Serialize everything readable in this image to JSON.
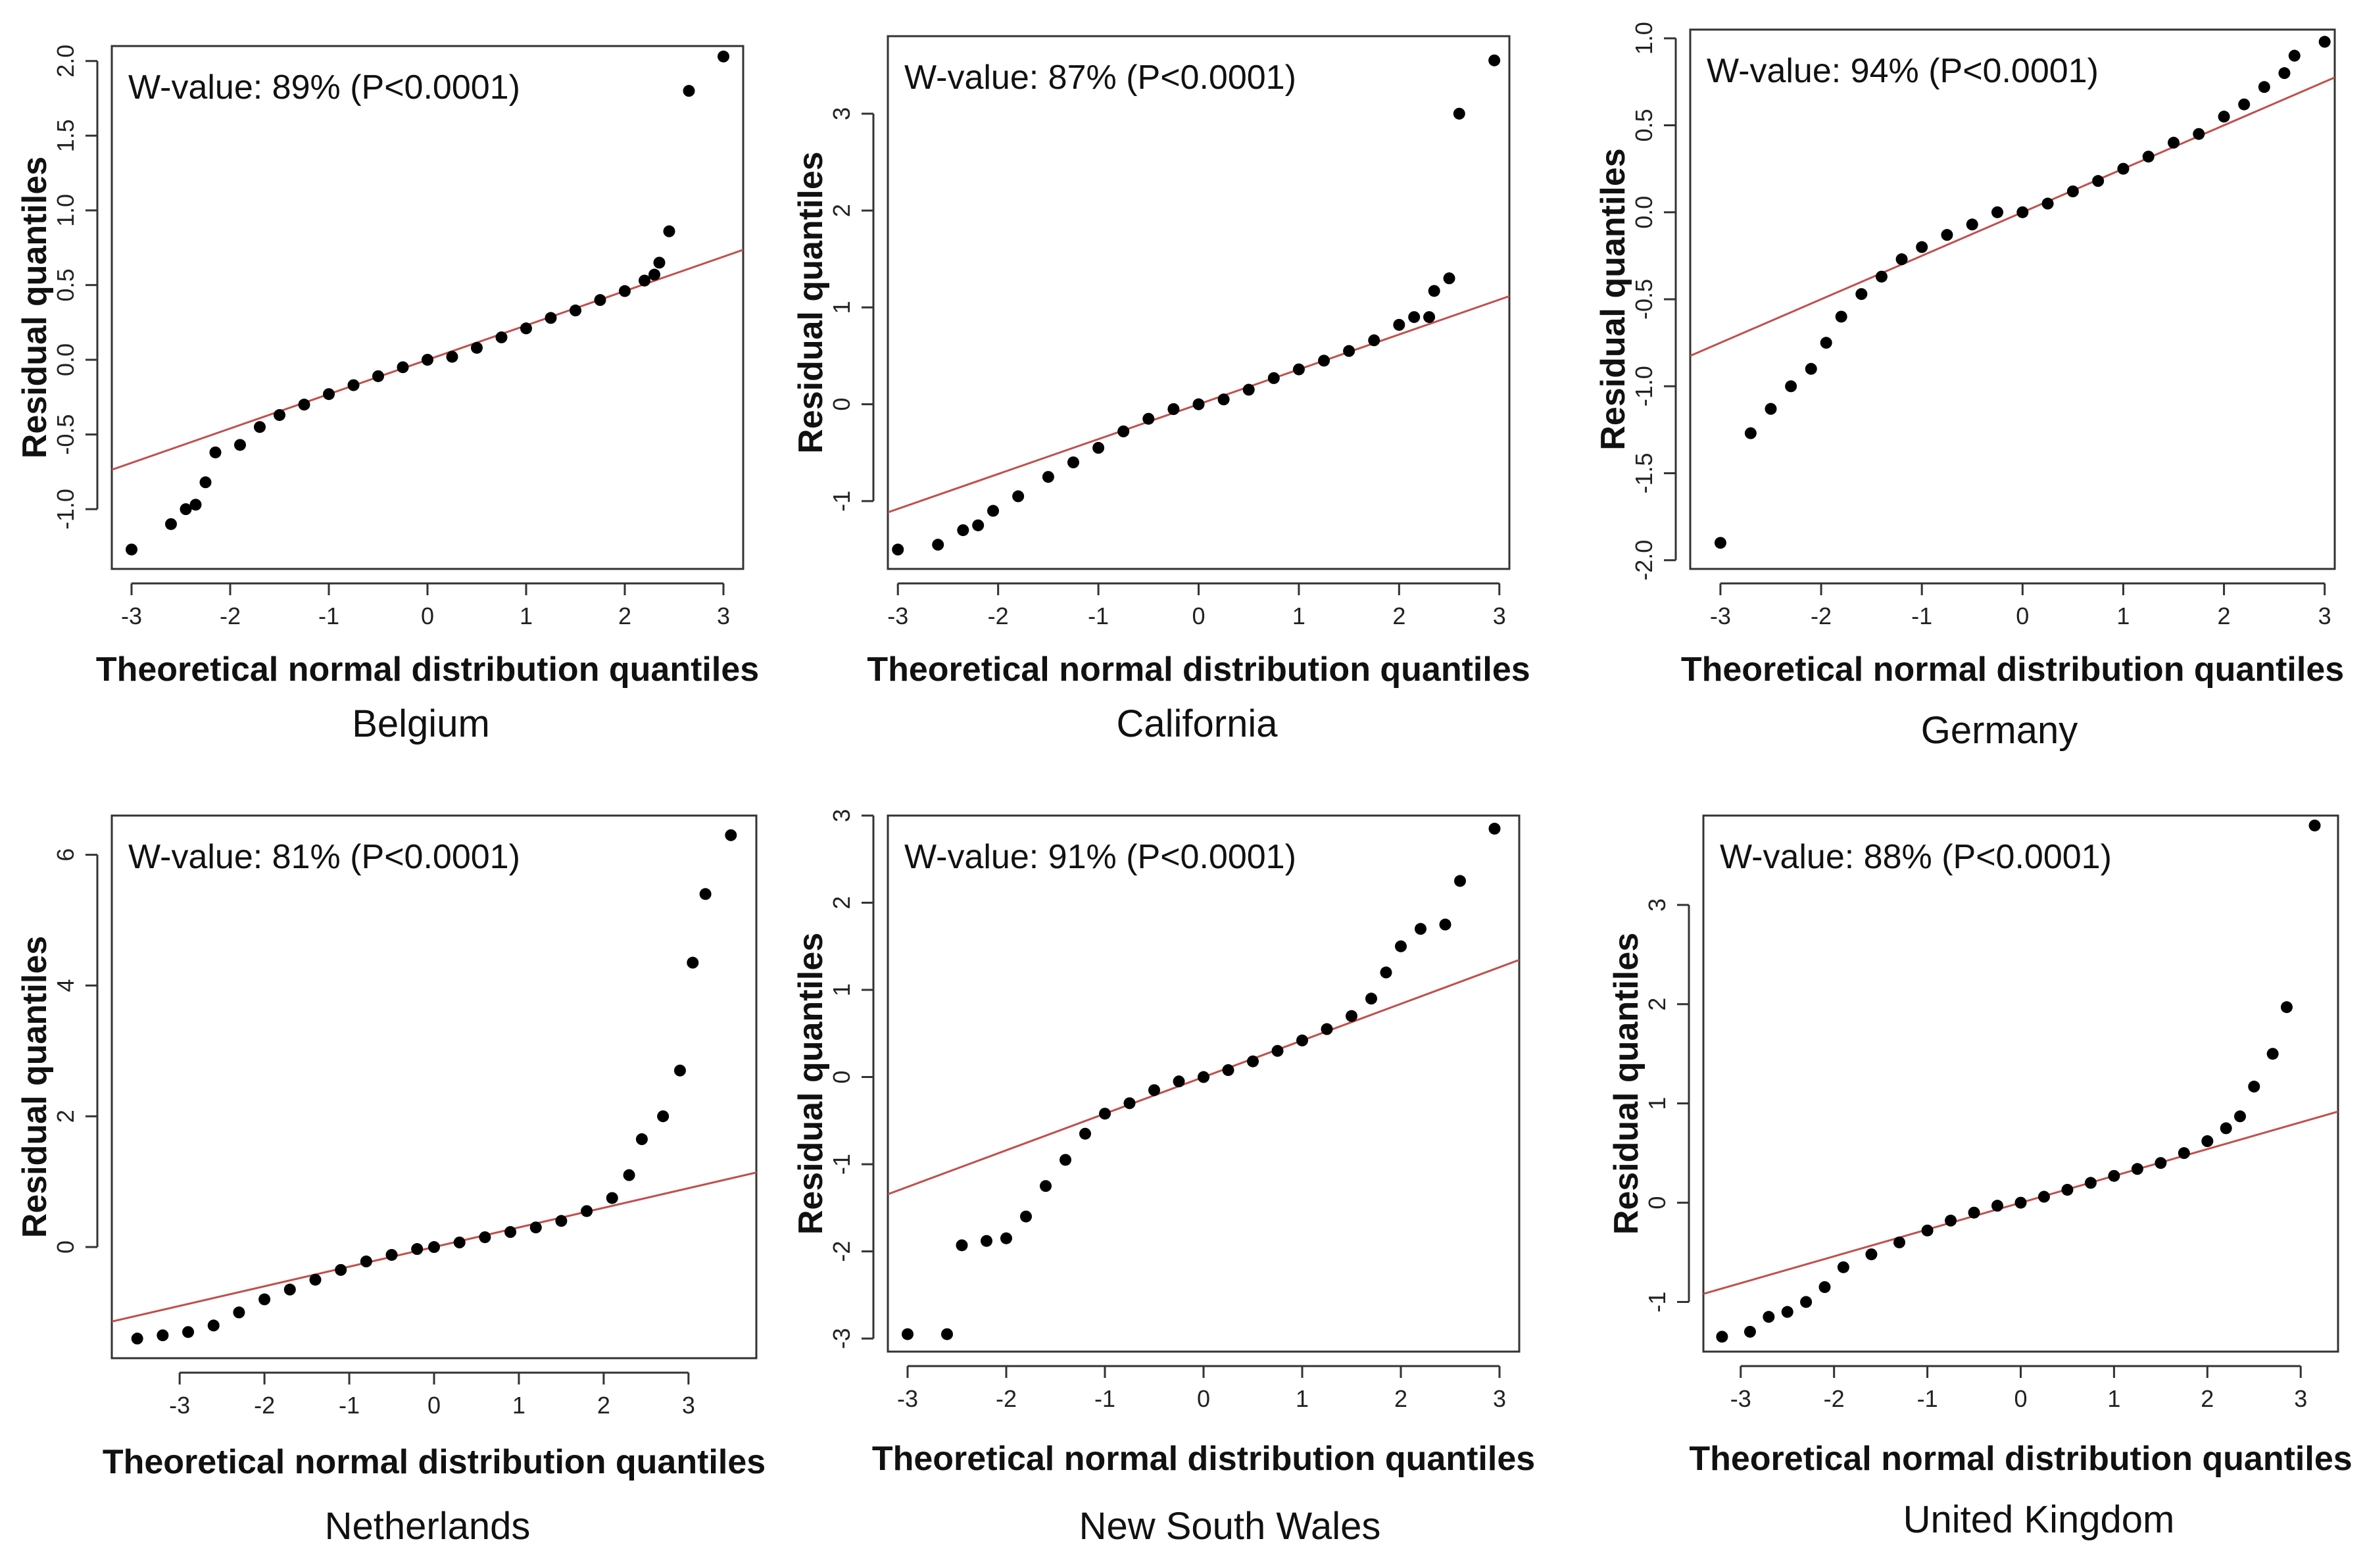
{
  "chart_data": [
    {
      "type": "scatter",
      "region": "Belgium",
      "annotation": "W-value: 89% (P<0.0001)",
      "xlabel": "Theoretical normal distribution quantiles",
      "ylabel": "Residual quantiles",
      "xlim": [
        -3.2,
        3.2
      ],
      "ylim": [
        -1.4,
        2.1
      ],
      "xticks": [
        -3,
        -2,
        -1,
        0,
        1,
        2,
        3
      ],
      "xtick_labels": [
        "-3",
        "-2",
        "-1",
        "0",
        "1",
        "2",
        "3"
      ],
      "yticks": [
        -1.0,
        -0.5,
        0.0,
        0.5,
        1.0,
        1.5,
        2.0
      ],
      "ytick_labels": [
        "-1.0",
        "-0.5",
        "0.0",
        "0.5",
        "1.0",
        "1.5",
        "2.0"
      ],
      "fit_line": {
        "intercept": 0.0,
        "slope": 0.23
      },
      "points": [
        [
          -3.0,
          -1.27
        ],
        [
          -2.6,
          -1.1
        ],
        [
          -2.45,
          -1.0
        ],
        [
          -2.35,
          -0.97
        ],
        [
          -2.25,
          -0.82
        ],
        [
          -2.15,
          -0.62
        ],
        [
          -1.9,
          -0.57
        ],
        [
          -1.7,
          -0.45
        ],
        [
          -1.5,
          -0.37
        ],
        [
          -1.25,
          -0.3
        ],
        [
          -1.0,
          -0.23
        ],
        [
          -0.75,
          -0.17
        ],
        [
          -0.5,
          -0.11
        ],
        [
          -0.25,
          -0.05
        ],
        [
          0.0,
          0.0
        ],
        [
          0.25,
          0.02
        ],
        [
          0.5,
          0.08
        ],
        [
          0.75,
          0.15
        ],
        [
          1.0,
          0.21
        ],
        [
          1.25,
          0.28
        ],
        [
          1.5,
          0.33
        ],
        [
          1.75,
          0.4
        ],
        [
          2.0,
          0.46
        ],
        [
          2.2,
          0.53
        ],
        [
          2.3,
          0.57
        ],
        [
          2.35,
          0.65
        ],
        [
          2.45,
          0.86
        ],
        [
          2.65,
          1.8
        ],
        [
          3.0,
          2.03
        ]
      ]
    },
    {
      "type": "scatter",
      "region": "California",
      "annotation": "W-value: 87% (P<0.0001)",
      "xlabel": "Theoretical normal distribution quantiles",
      "ylabel": "Residual quantiles",
      "xlim": [
        -3.1,
        3.1
      ],
      "ylim": [
        -1.7,
        3.8
      ],
      "xticks": [
        -3,
        -2,
        -1,
        0,
        1,
        2,
        3
      ],
      "xtick_labels": [
        "-3",
        "-2",
        "-1",
        "0",
        "1",
        "2",
        "3"
      ],
      "yticks": [
        -1,
        0,
        1,
        2,
        3
      ],
      "ytick_labels": [
        "-1",
        "0",
        "1",
        "2",
        "3"
      ],
      "fit_line": {
        "intercept": 0.0,
        "slope": 0.36
      },
      "points": [
        [
          -3.0,
          -1.5
        ],
        [
          -2.6,
          -1.45
        ],
        [
          -2.35,
          -1.3
        ],
        [
          -2.2,
          -1.25
        ],
        [
          -2.05,
          -1.1
        ],
        [
          -1.8,
          -0.95
        ],
        [
          -1.5,
          -0.75
        ],
        [
          -1.25,
          -0.6
        ],
        [
          -1.0,
          -0.45
        ],
        [
          -0.75,
          -0.28
        ],
        [
          -0.5,
          -0.15
        ],
        [
          -0.25,
          -0.05
        ],
        [
          0.0,
          0.0
        ],
        [
          0.25,
          0.05
        ],
        [
          0.5,
          0.15
        ],
        [
          0.75,
          0.27
        ],
        [
          1.0,
          0.36
        ],
        [
          1.25,
          0.45
        ],
        [
          1.5,
          0.55
        ],
        [
          1.75,
          0.66
        ],
        [
          2.0,
          0.82
        ],
        [
          2.15,
          0.9
        ],
        [
          2.3,
          0.9
        ],
        [
          2.35,
          1.17
        ],
        [
          2.5,
          1.3
        ],
        [
          2.6,
          3.0
        ],
        [
          2.95,
          3.55
        ]
      ]
    },
    {
      "type": "scatter",
      "region": "Germany",
      "annotation": "W-value: 94% (P<0.0001)",
      "xlabel": "Theoretical normal distribution quantiles",
      "ylabel": "Residual quantiles",
      "xlim": [
        -3.3,
        3.1
      ],
      "ylim": [
        -2.05,
        1.05
      ],
      "xticks": [
        -3,
        -2,
        -1,
        0,
        1,
        2,
        3
      ],
      "xtick_labels": [
        "-3",
        "-2",
        "-1",
        "0",
        "1",
        "2",
        "3"
      ],
      "yticks": [
        -2.0,
        -1.5,
        -1.0,
        -0.5,
        0.0,
        0.5,
        1.0
      ],
      "ytick_labels": [
        "-2.0",
        "-1.5",
        "-1.0",
        "-0.5",
        "0.0",
        "0.5",
        "1.0"
      ],
      "fit_line": {
        "intercept": 0.0,
        "slope": 0.25
      },
      "points": [
        [
          -3.0,
          -1.9
        ],
        [
          -2.7,
          -1.27
        ],
        [
          -2.5,
          -1.13
        ],
        [
          -2.3,
          -1.0
        ],
        [
          -2.1,
          -0.9
        ],
        [
          -1.95,
          -0.75
        ],
        [
          -1.8,
          -0.6
        ],
        [
          -1.6,
          -0.47
        ],
        [
          -1.4,
          -0.37
        ],
        [
          -1.2,
          -0.27
        ],
        [
          -1.0,
          -0.2
        ],
        [
          -0.75,
          -0.13
        ],
        [
          -0.5,
          -0.07
        ],
        [
          -0.25,
          0.0
        ],
        [
          0.0,
          0.0
        ],
        [
          0.25,
          0.05
        ],
        [
          0.5,
          0.12
        ],
        [
          0.75,
          0.18
        ],
        [
          1.0,
          0.25
        ],
        [
          1.25,
          0.32
        ],
        [
          1.5,
          0.4
        ],
        [
          1.75,
          0.45
        ],
        [
          2.0,
          0.55
        ],
        [
          2.2,
          0.62
        ],
        [
          2.4,
          0.72
        ],
        [
          2.6,
          0.8
        ],
        [
          2.7,
          0.9
        ],
        [
          3.0,
          0.98
        ]
      ]
    },
    {
      "type": "scatter",
      "region": "Netherlands",
      "annotation": "W-value: 81% (P<0.0001)",
      "xlabel": "Theoretical normal distribution quantiles",
      "ylabel": "Residual quantiles",
      "xlim": [
        -3.8,
        3.8
      ],
      "ylim": [
        -1.7,
        6.6
      ],
      "xticks": [
        -3,
        -2,
        -1,
        0,
        1,
        2,
        3
      ],
      "xtick_labels": [
        "-3",
        "-2",
        "-1",
        "0",
        "1",
        "2",
        "3"
      ],
      "yticks": [
        0,
        2,
        4,
        6
      ],
      "ytick_labels": [
        "0",
        "2",
        "4",
        "6"
      ],
      "fit_line": {
        "intercept": 0.0,
        "slope": 0.3
      },
      "points": [
        [
          -3.5,
          -1.4
        ],
        [
          -3.2,
          -1.35
        ],
        [
          -2.9,
          -1.3
        ],
        [
          -2.6,
          -1.2
        ],
        [
          -2.3,
          -1.0
        ],
        [
          -2.0,
          -0.8
        ],
        [
          -1.7,
          -0.65
        ],
        [
          -1.4,
          -0.5
        ],
        [
          -1.1,
          -0.35
        ],
        [
          -0.8,
          -0.22
        ],
        [
          -0.5,
          -0.12
        ],
        [
          -0.2,
          -0.03
        ],
        [
          0.0,
          0.0
        ],
        [
          0.3,
          0.07
        ],
        [
          0.6,
          0.15
        ],
        [
          0.9,
          0.23
        ],
        [
          1.2,
          0.3
        ],
        [
          1.5,
          0.4
        ],
        [
          1.8,
          0.55
        ],
        [
          2.1,
          0.75
        ],
        [
          2.3,
          1.1
        ],
        [
          2.45,
          1.65
        ],
        [
          2.7,
          2.0
        ],
        [
          2.9,
          2.7
        ],
        [
          3.05,
          4.35
        ],
        [
          3.2,
          5.4
        ],
        [
          3.5,
          6.3
        ]
      ]
    },
    {
      "type": "scatter",
      "region": "New South Wales",
      "annotation": "W-value: 91% (P<0.0001)",
      "xlabel": "Theoretical normal distribution quantiles",
      "ylabel": "Residual quantiles",
      "xlim": [
        -3.2,
        3.2
      ],
      "ylim": [
        -3.15,
        3.0
      ],
      "xticks": [
        -3,
        -2,
        -1,
        0,
        1,
        2,
        3
      ],
      "xtick_labels": [
        "-3",
        "-2",
        "-1",
        "0",
        "1",
        "2",
        "3"
      ],
      "yticks": [
        -3,
        -2,
        -1,
        0,
        1,
        2,
        3
      ],
      "ytick_labels": [
        "-3",
        "-2",
        "-1",
        "0",
        "1",
        "2",
        "3"
      ],
      "fit_line": {
        "intercept": 0.0,
        "slope": 0.42
      },
      "points": [
        [
          -3.0,
          -2.95
        ],
        [
          -2.6,
          -2.95
        ],
        [
          -2.45,
          -1.93
        ],
        [
          -2.2,
          -1.88
        ],
        [
          -2.0,
          -1.85
        ],
        [
          -1.8,
          -1.6
        ],
        [
          -1.6,
          -1.25
        ],
        [
          -1.4,
          -0.95
        ],
        [
          -1.2,
          -0.65
        ],
        [
          -1.0,
          -0.42
        ],
        [
          -0.75,
          -0.3
        ],
        [
          -0.5,
          -0.15
        ],
        [
          -0.25,
          -0.05
        ],
        [
          0.0,
          0.0
        ],
        [
          0.25,
          0.08
        ],
        [
          0.5,
          0.18
        ],
        [
          0.75,
          0.3
        ],
        [
          1.0,
          0.42
        ],
        [
          1.25,
          0.55
        ],
        [
          1.5,
          0.7
        ],
        [
          1.7,
          0.9
        ],
        [
          1.85,
          1.2
        ],
        [
          2.0,
          1.5
        ],
        [
          2.2,
          1.7
        ],
        [
          2.45,
          1.75
        ],
        [
          2.6,
          2.25
        ],
        [
          2.95,
          2.85
        ]
      ]
    },
    {
      "type": "scatter",
      "region": "United Kingdom",
      "annotation": "W-value: 88% (P<0.0001)",
      "xlabel": "Theoretical normal distribution quantiles",
      "ylabel": "Residual quantiles",
      "xlim": [
        -3.4,
        3.4
      ],
      "ylim": [
        -1.5,
        3.9
      ],
      "xticks": [
        -3,
        -2,
        -1,
        0,
        1,
        2,
        3
      ],
      "xtick_labels": [
        "-3",
        "-2",
        "-1",
        "0",
        "1",
        "2",
        "3"
      ],
      "yticks": [
        -1,
        0,
        1,
        2,
        3
      ],
      "ytick_labels": [
        "-1",
        "0",
        "1",
        "2",
        "3"
      ],
      "fit_line": {
        "intercept": 0.0,
        "slope": 0.27
      },
      "points": [
        [
          -3.2,
          -1.35
        ],
        [
          -2.9,
          -1.3
        ],
        [
          -2.7,
          -1.15
        ],
        [
          -2.5,
          -1.1
        ],
        [
          -2.3,
          -1.0
        ],
        [
          -2.1,
          -0.85
        ],
        [
          -1.9,
          -0.65
        ],
        [
          -1.6,
          -0.52
        ],
        [
          -1.3,
          -0.4
        ],
        [
          -1.0,
          -0.28
        ],
        [
          -0.75,
          -0.18
        ],
        [
          -0.5,
          -0.1
        ],
        [
          -0.25,
          -0.03
        ],
        [
          0.0,
          0.0
        ],
        [
          0.25,
          0.06
        ],
        [
          0.5,
          0.13
        ],
        [
          0.75,
          0.2
        ],
        [
          1.0,
          0.27
        ],
        [
          1.25,
          0.34
        ],
        [
          1.5,
          0.4
        ],
        [
          1.75,
          0.5
        ],
        [
          2.0,
          0.62
        ],
        [
          2.2,
          0.75
        ],
        [
          2.35,
          0.87
        ],
        [
          2.5,
          1.17
        ],
        [
          2.7,
          1.5
        ],
        [
          2.85,
          1.97
        ],
        [
          3.15,
          3.8
        ]
      ]
    }
  ]
}
